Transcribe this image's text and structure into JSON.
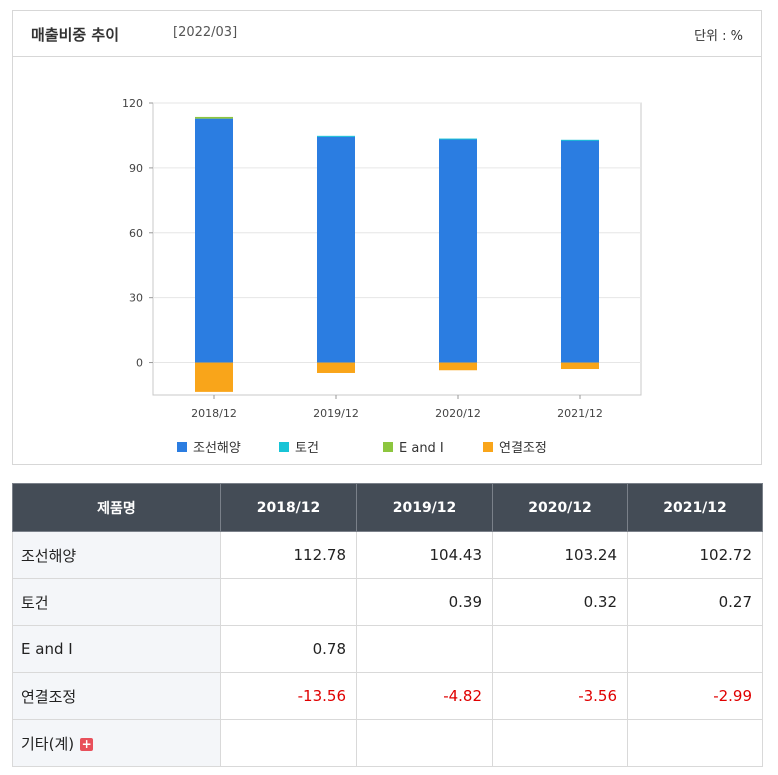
{
  "header": {
    "title": "매출비중 추이",
    "period": "[2022/03]",
    "unit": "단위 : %"
  },
  "chart_data": {
    "type": "bar",
    "stacked": true,
    "categories": [
      "2018/12",
      "2019/12",
      "2020/12",
      "2021/12"
    ],
    "series": [
      {
        "name": "조선해양",
        "color": "#2b7de1",
        "values": [
          112.78,
          104.43,
          103.24,
          102.72
        ]
      },
      {
        "name": "토건",
        "color": "#18c4d6",
        "values": [
          0,
          0.39,
          0.32,
          0.27
        ]
      },
      {
        "name": "E and I",
        "color": "#8dc63f",
        "values": [
          0.78,
          0,
          0,
          0
        ]
      },
      {
        "name": "연결조정",
        "color": "#f9a51a",
        "values": [
          -13.56,
          -4.82,
          -3.56,
          -2.99
        ]
      }
    ],
    "yticks": [
      0,
      30,
      60,
      90,
      120
    ],
    "ylim": [
      -15,
      120
    ],
    "grid": true,
    "legend_position": "bottom"
  },
  "table": {
    "header_name": "제품명",
    "columns": [
      "2018/12",
      "2019/12",
      "2020/12",
      "2021/12"
    ],
    "rows": [
      {
        "name": "조선해양",
        "values": [
          "112.78",
          "104.43",
          "103.24",
          "102.72"
        ],
        "neg": false
      },
      {
        "name": "토건",
        "values": [
          "",
          "0.39",
          "0.32",
          "0.27"
        ],
        "neg": false
      },
      {
        "name": "E and I",
        "values": [
          "0.78",
          "",
          "",
          ""
        ],
        "neg": false
      },
      {
        "name": "연결조정",
        "values": [
          "-13.56",
          "-4.82",
          "-3.56",
          "-2.99"
        ],
        "neg": true
      },
      {
        "name": "기타(계)",
        "values": [
          "",
          "",
          "",
          ""
        ],
        "neg": false,
        "expandable": true
      }
    ]
  }
}
